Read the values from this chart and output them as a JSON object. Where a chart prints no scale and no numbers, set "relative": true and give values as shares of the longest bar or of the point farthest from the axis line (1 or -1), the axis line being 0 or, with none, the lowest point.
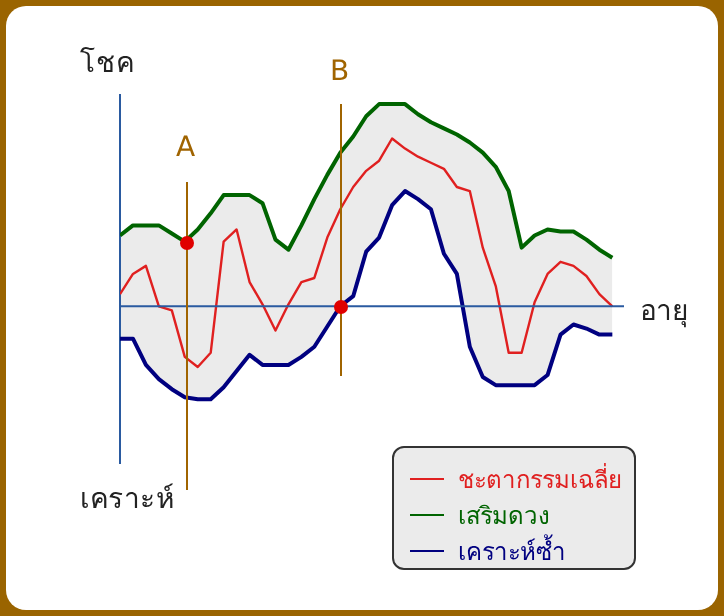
{
  "chart_data": {
    "type": "line",
    "relative": true,
    "ylabel": "โชค",
    "xlabel": "อายุ",
    "annotations": [
      "เคราะห์",
      "A",
      "B"
    ],
    "legend": "bottom right",
    "marker": "none",
    "categories": [
      null,
      null,
      null,
      null,
      null,
      null,
      null,
      null,
      null,
      null,
      null,
      null,
      null,
      null,
      null,
      null,
      null,
      null,
      null,
      null,
      null,
      null,
      null,
      null,
      null,
      null,
      null,
      null,
      null,
      null,
      null,
      null,
      null,
      null,
      null,
      null,
      null,
      null,
      null
    ],
    "series": [
      {
        "name": "ชะตากรรมเฉลี่ย",
        "color": "#e02020",
        "values": [
          0.06,
          0.16,
          0.2,
          0.0,
          -0.02,
          -0.25,
          -0.3,
          -0.23,
          0.32,
          0.38,
          0.12,
          0.01,
          -0.12,
          0.01,
          0.12,
          0.14,
          0.34,
          0.48,
          0.59,
          0.67,
          0.72,
          0.83,
          0.78,
          0.74,
          0.71,
          0.68,
          0.59,
          0.57,
          0.29,
          0.1,
          -0.23,
          -0.23,
          0.02,
          0.16,
          0.22,
          0.2,
          0.15,
          0.06,
          0.0
        ],
        "upper": [
          0.35,
          0.4,
          0.4,
          0.4,
          0.36,
          0.32,
          0.38,
          0.46,
          0.55,
          0.55,
          0.55,
          0.51,
          0.33,
          0.28,
          0.4,
          0.53,
          0.65,
          0.76,
          0.84,
          0.94,
          1.0,
          1.0,
          1.0,
          0.95,
          0.91,
          0.88,
          0.85,
          0.81,
          0.76,
          0.69,
          0.57,
          0.29,
          0.35,
          0.38,
          0.37,
          0.37,
          0.33,
          0.28,
          0.24
        ],
        "lower": [
          -0.16,
          -0.16,
          -0.29,
          -0.36,
          -0.41,
          -0.45,
          -0.46,
          -0.46,
          -0.4,
          -0.32,
          -0.24,
          -0.29,
          -0.29,
          -0.29,
          -0.25,
          -0.2,
          -0.1,
          0.0,
          0.05,
          0.27,
          0.34,
          0.5,
          0.57,
          0.53,
          0.48,
          0.26,
          0.16,
          -0.2,
          -0.35,
          -0.39,
          -0.39,
          -0.39,
          -0.39,
          -0.34,
          -0.14,
          -0.09,
          -0.11,
          -0.14,
          -0.14
        ]
      },
      {
        "name": "เสริมดวง",
        "color": "#006400",
        "values": [
          0.35,
          0.4,
          0.4,
          0.4,
          0.36,
          0.32,
          0.38,
          0.46,
          0.55,
          0.55,
          0.55,
          0.51,
          0.33,
          0.28,
          0.4,
          0.53,
          0.65,
          0.76,
          0.84,
          0.94,
          1.0,
          1.0,
          1.0,
          0.95,
          0.91,
          0.88,
          0.85,
          0.81,
          0.76,
          0.69,
          0.57,
          0.29,
          0.35,
          0.38,
          0.37,
          0.37,
          0.33,
          0.28,
          0.24
        ]
      },
      {
        "name": "เคราะห์ซ้ำ",
        "color": "#000080",
        "values": [
          -0.16,
          -0.16,
          -0.29,
          -0.36,
          -0.41,
          -0.45,
          -0.46,
          -0.46,
          -0.4,
          -0.32,
          -0.24,
          -0.29,
          -0.29,
          -0.29,
          -0.25,
          -0.2,
          -0.1,
          0.0,
          0.05,
          0.27,
          0.34,
          0.5,
          0.57,
          0.53,
          0.48,
          0.26,
          0.16,
          -0.2,
          -0.35,
          -0.39,
          -0.39,
          -0.39,
          -0.39,
          -0.34,
          -0.14,
          -0.09,
          -0.11,
          -0.14,
          -0.14
        ]
      }
    ],
    "ref_lines": [
      {
        "axis": "y",
        "value": 0,
        "color": "#2a5aa0"
      }
    ]
  }
}
